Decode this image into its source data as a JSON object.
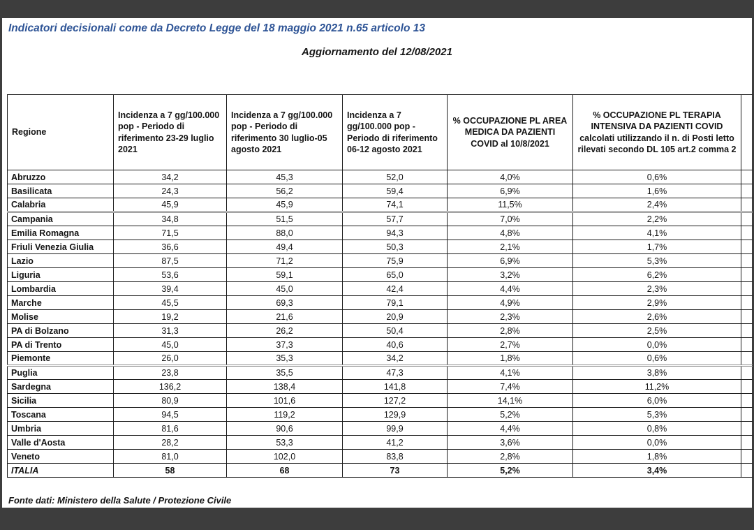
{
  "page": {
    "title": "Indicatori decisionali come da Decreto Legge del 18 maggio 2021 n.65 articolo 13",
    "subtitle": "Aggiornamento del 12/08/2021",
    "source_note": "Fonte dati: Ministero della Salute / Protezione Civile"
  },
  "colors": {
    "frame_bar": "#3d3d3d",
    "title_blue": "#2e5496",
    "table_border": "#1c1c1c",
    "page_break_line": "#8f8f8f"
  },
  "table": {
    "columns": [
      {
        "label": "Regione",
        "align": "left"
      },
      {
        "label": "Incidenza a 7 gg/100.000 pop - Periodo di riferimento 23-29 luglio 2021",
        "align": "left"
      },
      {
        "label": "Incidenza a 7 gg/100.000 pop - Periodo di riferimento 30 luglio-05 agosto 2021",
        "align": "left"
      },
      {
        "label": "Incidenza a 7 gg/100.000 pop - Periodo di riferimento 06-12 agosto 2021",
        "align": "left"
      },
      {
        "label": "% OCCUPAZIONE PL AREA MEDICA DA PAZIENTI COVID al 10/8/2021",
        "align": "center"
      },
      {
        "label": "% OCCUPAZIONE PL TERAPIA INTENSIVA DA PAZIENTI COVID calcolati utilizzando il n. di Posti letto rilevati secondo DL 105 art.2 comma 2",
        "align": "center"
      }
    ],
    "rows": [
      {
        "region": "Abruzzo",
        "values": [
          "34,2",
          "45,3",
          "52,0",
          "4,0%",
          "0,6%"
        ]
      },
      {
        "region": "Basilicata",
        "values": [
          "24,3",
          "56,2",
          "59,4",
          "6,9%",
          "1,6%"
        ]
      },
      {
        "region": "Calabria",
        "values": [
          "45,9",
          "45,9",
          "74,1",
          "11,5%",
          "2,4%"
        ]
      },
      {
        "region": "Campania",
        "values": [
          "34,8",
          "51,5",
          "57,7",
          "7,0%",
          "2,2%"
        ]
      },
      {
        "region": "Emilia Romagna",
        "values": [
          "71,5",
          "88,0",
          "94,3",
          "4,8%",
          "4,1%"
        ]
      },
      {
        "region": "Friuli Venezia Giulia",
        "values": [
          "36,6",
          "49,4",
          "50,3",
          "2,1%",
          "1,7%"
        ]
      },
      {
        "region": "Lazio",
        "values": [
          "87,5",
          "71,2",
          "75,9",
          "6,9%",
          "5,3%"
        ]
      },
      {
        "region": "Liguria",
        "values": [
          "53,6",
          "59,1",
          "65,0",
          "3,2%",
          "6,2%"
        ]
      },
      {
        "region": "Lombardia",
        "values": [
          "39,4",
          "45,0",
          "42,4",
          "4,4%",
          "2,3%"
        ]
      },
      {
        "region": "Marche",
        "values": [
          "45,5",
          "69,3",
          "79,1",
          "4,9%",
          "2,9%"
        ]
      },
      {
        "region": "Molise",
        "values": [
          "19,2",
          "21,6",
          "20,9",
          "2,3%",
          "2,6%"
        ]
      },
      {
        "region": "PA di Bolzano",
        "values": [
          "31,3",
          "26,2",
          "50,4",
          "2,8%",
          "2,5%"
        ]
      },
      {
        "region": "PA di Trento",
        "values": [
          "45,0",
          "37,3",
          "40,6",
          "2,7%",
          "0,0%"
        ]
      },
      {
        "region": "Piemonte",
        "values": [
          "26,0",
          "35,3",
          "34,2",
          "1,8%",
          "0,6%"
        ]
      },
      {
        "region": "Puglia",
        "values": [
          "23,8",
          "35,5",
          "47,3",
          "4,1%",
          "3,8%"
        ]
      },
      {
        "region": "Sardegna",
        "values": [
          "136,2",
          "138,4",
          "141,8",
          "7,4%",
          "11,2%"
        ]
      },
      {
        "region": "Sicilia",
        "values": [
          "80,9",
          "101,6",
          "127,2",
          "14,1%",
          "6,0%"
        ]
      },
      {
        "region": "Toscana",
        "values": [
          "94,5",
          "119,2",
          "129,9",
          "5,2%",
          "5,3%"
        ]
      },
      {
        "region": "Umbria",
        "values": [
          "81,6",
          "90,6",
          "99,9",
          "4,4%",
          "0,8%"
        ]
      },
      {
        "region": "Valle d'Aosta",
        "values": [
          "28,2",
          "53,3",
          "41,2",
          "3,6%",
          "0,0%"
        ]
      },
      {
        "region": "Veneto",
        "values": [
          "81,0",
          "102,0",
          "83,8",
          "2,8%",
          "1,8%"
        ]
      }
    ],
    "total_row": {
      "region": "ITALIA",
      "values": [
        "58",
        "68",
        "73",
        "5,2%",
        "3,4%"
      ]
    },
    "page_break_after": [
      "Calabria",
      "Piemonte"
    ]
  }
}
